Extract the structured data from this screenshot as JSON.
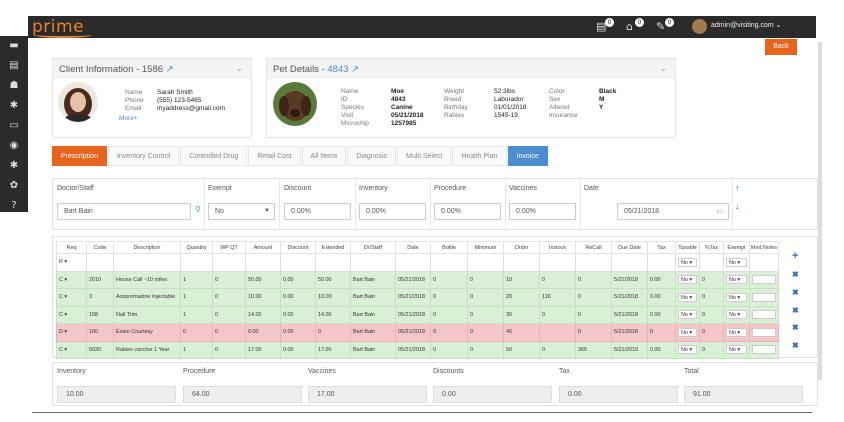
{
  "app": {
    "logo": "prime"
  },
  "topbar": {
    "icons": [
      {
        "name": "calendar-icon",
        "glyph": "▤",
        "badge": "0"
      },
      {
        "name": "bell-icon",
        "glyph": "⌂",
        "badge": "0"
      },
      {
        "name": "syringe-icon",
        "glyph": "✎",
        "badge": "0"
      }
    ],
    "user_email": "admin@visiting.com ⌄"
  },
  "back_label": "Back",
  "client": {
    "title": "Client Information - 1586 ",
    "name_label": "Name",
    "name": "Sarah Smith",
    "phone_label": "Phone",
    "phone": "(555) 123-5465",
    "email_label": "Email",
    "email": "myaddress@gmail.com",
    "more": "More+"
  },
  "pet": {
    "title": "Pet Details - ",
    "id_link": "4843",
    "fields": [
      {
        "k": "Name",
        "v": "Moe"
      },
      {
        "k": "ID",
        "v": "4843"
      },
      {
        "k": "Species",
        "v": "Canine"
      },
      {
        "k": "Visit",
        "v": "05/21/2018"
      },
      {
        "k": "Microchip",
        "v": "1257985"
      }
    ],
    "fields2": [
      {
        "k": "Weight",
        "v": "52.3lbs"
      },
      {
        "k": "Breed",
        "v": "Laborador"
      },
      {
        "k": "Birthday",
        "v": "01/01/2018"
      },
      {
        "k": "Rabies",
        "v": "1545-19"
      }
    ],
    "fields3": [
      {
        "k": "Color",
        "v": "Black"
      },
      {
        "k": "Sex",
        "v": "M"
      },
      {
        "k": "Altered",
        "v": "Y"
      },
      {
        "k": "Insurance",
        "v": ""
      }
    ]
  },
  "tabs": [
    "Prescription",
    "Inventory Control",
    "Controlled Drug",
    "Retail Cost",
    "All Items",
    "Diagnosis",
    "Multi Select",
    "Health Plan",
    "Invoice"
  ],
  "filters": {
    "doctor_label": "Doctor/Staff",
    "doctor_value": "Bart Bain",
    "exempt_label": "Exempt",
    "exempt_value": "No",
    "discount_label": "Discount",
    "discount_value": "0.00%",
    "inventory_label": "Inventory",
    "inventory_value": "0.00%",
    "procedure_label": "Procedure",
    "procedure_value": "0.00%",
    "vaccines_label": "Vaccines",
    "vaccines_value": "0.00%",
    "date_label": "Date",
    "date_value": "05/21/2018"
  },
  "grid": {
    "headers": [
      "Req",
      "Code",
      "Description",
      "Quantity",
      "WP QT",
      "Amount",
      "Discount",
      "Extended",
      "Dr/Staff",
      "Date",
      "Bottle",
      "Minimum",
      "Order",
      "Instock",
      "ReCall",
      "Due Date",
      "Tax",
      "Taxable",
      "%Tax",
      "Exempt",
      "Med Notes"
    ],
    "new_row": {
      "req": "R",
      "taxable": "No",
      "exempt": "No"
    },
    "rows": [
      {
        "status": "green",
        "cells": [
          "C",
          "2010",
          "House Call ~10 miles",
          "1",
          "0",
          "50.00",
          "0.00",
          "50.00",
          "Bart Bain",
          "05/21/2018",
          "0",
          "0",
          "10",
          "0",
          "0",
          "5/21/2018",
          "0.00",
          "No",
          "0",
          "No",
          ""
        ]
      },
      {
        "status": "green",
        "cells": [
          "C",
          "3",
          "Acepromazine Injectable",
          "1",
          "0",
          "10.00",
          "0.00",
          "10.00",
          "Bart Bain",
          "05/21/2018",
          "0",
          "0",
          "20",
          "116",
          "0",
          "5/21/2018",
          "0.00",
          "No",
          "0",
          "No",
          ""
        ]
      },
      {
        "status": "green",
        "cells": [
          "C",
          "158",
          "Nail Trim",
          "1",
          "0",
          "14.00",
          "0.00",
          "14.00",
          "Bart Bain",
          "05/21/2018",
          "0",
          "0",
          "30",
          "0",
          "0",
          "5/21/2018",
          "0.00",
          "No",
          "0",
          "No",
          ""
        ]
      },
      {
        "status": "red",
        "cells": [
          "D",
          "160",
          "Exam Courtesy",
          "0",
          "0",
          "0.00",
          "0.00",
          "0",
          "Bart Bain",
          "05/21/2018",
          "0",
          "0",
          "40",
          "",
          "0",
          "5/21/2018",
          "0",
          "No",
          "0",
          "No",
          ""
        ]
      },
      {
        "status": "green",
        "cells": [
          "C",
          "6030",
          "Rabies vaccine 1 Year",
          "1",
          "0",
          "17.00",
          "0.00",
          "17.00",
          "Bart Bain",
          "05/21/2018",
          "0",
          "0",
          "50",
          "0",
          "365",
          "5/21/2019",
          "0.00",
          "No",
          "0",
          "No",
          ""
        ]
      }
    ]
  },
  "totals": [
    {
      "label": "Inventory",
      "value": "10.00"
    },
    {
      "label": "Procedure",
      "value": "64.00"
    },
    {
      "label": "Vaccines",
      "value": "17.00"
    },
    {
      "label": "Discounts",
      "value": "0.00"
    },
    {
      "label": "Tax",
      "value": "0.00"
    },
    {
      "label": "Total",
      "value": "91.00"
    }
  ],
  "colors": {
    "accent": "#e8641c",
    "link": "#4a8ecf",
    "row_ok": "#d9f0d6",
    "row_declined": "#f4c6c9"
  }
}
